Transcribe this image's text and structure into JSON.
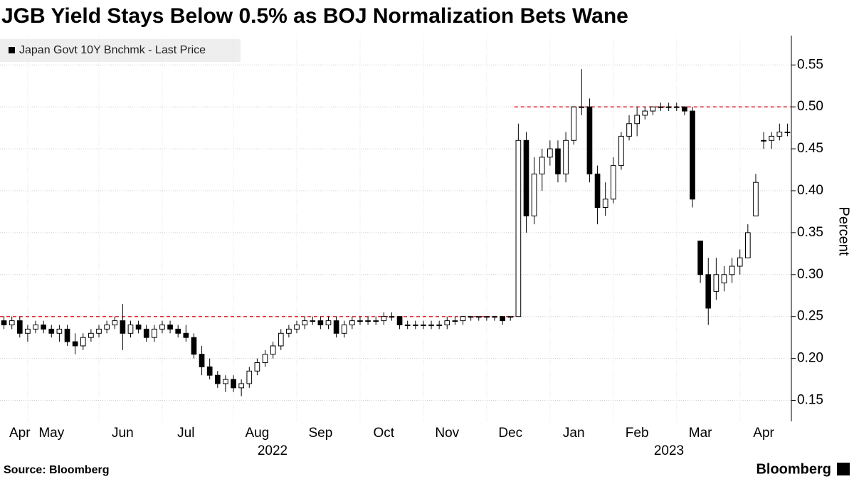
{
  "chart_data": {
    "type": "candlestick",
    "title": "JGB Yield Stays Below 0.5% as BOJ Normalization Bets Wane",
    "legend": "Japan Govt 10Y Bnchmk - Last Price",
    "y_axis_label": "Percent",
    "source": "Source: Bloomberg",
    "brand": "Bloomberg",
    "year_labels": [
      "2022",
      "2023"
    ],
    "categories": [
      null,
      null,
      "Apr",
      null,
      null,
      null,
      "May",
      null,
      null,
      null,
      null,
      null,
      null,
      null,
      null,
      "Jun",
      null,
      null,
      null,
      null,
      null,
      null,
      null,
      "Jul",
      null,
      null,
      null,
      null,
      null,
      null,
      null,
      null,
      "Aug",
      null,
      null,
      null,
      null,
      null,
      null,
      null,
      "Sep",
      null,
      null,
      null,
      null,
      null,
      null,
      null,
      "Oct",
      null,
      null,
      null,
      null,
      null,
      null,
      null,
      "Nov",
      null,
      null,
      null,
      null,
      null,
      null,
      null,
      "Dec",
      null,
      null,
      null,
      null,
      null,
      null,
      null,
      "Jan",
      null,
      null,
      null,
      null,
      null,
      null,
      null,
      "Feb",
      null,
      null,
      null,
      null,
      null,
      null,
      null,
      "Mar",
      null,
      null,
      null,
      null,
      null,
      null,
      null,
      "Apr",
      null,
      null,
      null
    ],
    "ohlc": [
      [
        0.245,
        0.25,
        0.235,
        0.24
      ],
      [
        0.24,
        0.25,
        0.235,
        0.245
      ],
      [
        0.245,
        0.25,
        0.225,
        0.23
      ],
      [
        0.23,
        0.24,
        0.22,
        0.235
      ],
      [
        0.235,
        0.245,
        0.23,
        0.24
      ],
      [
        0.24,
        0.245,
        0.23,
        0.235
      ],
      [
        0.235,
        0.24,
        0.225,
        0.23
      ],
      [
        0.23,
        0.24,
        0.22,
        0.235
      ],
      [
        0.235,
        0.24,
        0.215,
        0.22
      ],
      [
        0.22,
        0.23,
        0.205,
        0.215
      ],
      [
        0.215,
        0.23,
        0.21,
        0.225
      ],
      [
        0.225,
        0.235,
        0.22,
        0.23
      ],
      [
        0.23,
        0.24,
        0.225,
        0.235
      ],
      [
        0.235,
        0.245,
        0.23,
        0.24
      ],
      [
        0.24,
        0.25,
        0.235,
        0.245
      ],
      [
        0.245,
        0.265,
        0.21,
        0.23
      ],
      [
        0.23,
        0.245,
        0.225,
        0.24
      ],
      [
        0.24,
        0.245,
        0.23,
        0.235
      ],
      [
        0.235,
        0.24,
        0.22,
        0.225
      ],
      [
        0.225,
        0.24,
        0.22,
        0.235
      ],
      [
        0.235,
        0.245,
        0.23,
        0.24
      ],
      [
        0.24,
        0.245,
        0.23,
        0.235
      ],
      [
        0.235,
        0.24,
        0.225,
        0.23
      ],
      [
        0.23,
        0.24,
        0.22,
        0.225
      ],
      [
        0.225,
        0.23,
        0.2,
        0.205
      ],
      [
        0.205,
        0.215,
        0.18,
        0.19
      ],
      [
        0.19,
        0.2,
        0.175,
        0.18
      ],
      [
        0.18,
        0.185,
        0.165,
        0.17
      ],
      [
        0.17,
        0.18,
        0.16,
        0.175
      ],
      [
        0.175,
        0.18,
        0.16,
        0.165
      ],
      [
        0.165,
        0.175,
        0.155,
        0.17
      ],
      [
        0.17,
        0.19,
        0.165,
        0.185
      ],
      [
        0.185,
        0.2,
        0.18,
        0.195
      ],
      [
        0.195,
        0.21,
        0.19,
        0.205
      ],
      [
        0.205,
        0.22,
        0.2,
        0.215
      ],
      [
        0.215,
        0.235,
        0.21,
        0.23
      ],
      [
        0.23,
        0.24,
        0.225,
        0.235
      ],
      [
        0.235,
        0.245,
        0.23,
        0.24
      ],
      [
        0.24,
        0.25,
        0.235,
        0.245
      ],
      [
        0.245,
        0.25,
        0.24,
        0.245
      ],
      [
        0.245,
        0.25,
        0.235,
        0.24
      ],
      [
        0.24,
        0.25,
        0.235,
        0.245
      ],
      [
        0.245,
        0.25,
        0.225,
        0.23
      ],
      [
        0.23,
        0.245,
        0.225,
        0.24
      ],
      [
        0.24,
        0.25,
        0.235,
        0.245
      ],
      [
        0.245,
        0.25,
        0.24,
        0.245
      ],
      [
        0.245,
        0.25,
        0.24,
        0.245
      ],
      [
        0.245,
        0.25,
        0.24,
        0.245
      ],
      [
        0.245,
        0.255,
        0.24,
        0.25
      ],
      [
        0.25,
        0.255,
        0.245,
        0.25
      ],
      [
        0.25,
        0.25,
        0.235,
        0.24
      ],
      [
        0.24,
        0.245,
        0.235,
        0.24
      ],
      [
        0.24,
        0.245,
        0.235,
        0.24
      ],
      [
        0.24,
        0.245,
        0.235,
        0.24
      ],
      [
        0.24,
        0.245,
        0.235,
        0.24
      ],
      [
        0.24,
        0.245,
        0.235,
        0.24
      ],
      [
        0.24,
        0.25,
        0.235,
        0.245
      ],
      [
        0.245,
        0.25,
        0.24,
        0.245
      ],
      [
        0.245,
        0.25,
        0.24,
        0.25
      ],
      [
        0.25,
        0.25,
        0.245,
        0.25
      ],
      [
        0.25,
        0.25,
        0.245,
        0.25
      ],
      [
        0.25,
        0.25,
        0.245,
        0.25
      ],
      [
        0.25,
        0.25,
        0.245,
        0.25
      ],
      [
        0.25,
        0.25,
        0.24,
        0.245
      ],
      [
        0.25,
        0.25,
        0.245,
        0.25
      ],
      [
        0.25,
        0.48,
        0.25,
        0.46
      ],
      [
        0.46,
        0.47,
        0.35,
        0.37
      ],
      [
        0.37,
        0.44,
        0.36,
        0.42
      ],
      [
        0.42,
        0.45,
        0.4,
        0.44
      ],
      [
        0.44,
        0.46,
        0.43,
        0.45
      ],
      [
        0.45,
        0.46,
        0.41,
        0.42
      ],
      [
        0.42,
        0.47,
        0.41,
        0.46
      ],
      [
        0.46,
        0.5,
        0.455,
        0.5
      ],
      [
        0.5,
        0.545,
        0.49,
        0.5
      ],
      [
        0.5,
        0.51,
        0.41,
        0.42
      ],
      [
        0.42,
        0.43,
        0.36,
        0.38
      ],
      [
        0.38,
        0.41,
        0.37,
        0.39
      ],
      [
        0.39,
        0.44,
        0.385,
        0.43
      ],
      [
        0.43,
        0.47,
        0.425,
        0.465
      ],
      [
        0.465,
        0.49,
        0.46,
        0.48
      ],
      [
        0.48,
        0.5,
        0.465,
        0.49
      ],
      [
        0.49,
        0.5,
        0.485,
        0.495
      ],
      [
        0.495,
        0.5,
        0.49,
        0.5
      ],
      [
        0.5,
        0.505,
        0.495,
        0.5
      ],
      [
        0.5,
        0.505,
        0.495,
        0.5
      ],
      [
        0.5,
        0.505,
        0.495,
        0.5
      ],
      [
        0.5,
        0.5,
        0.49,
        0.495
      ],
      [
        0.495,
        0.5,
        0.38,
        0.39
      ],
      [
        0.34,
        0.34,
        0.29,
        0.3
      ],
      [
        0.3,
        0.32,
        0.24,
        0.26
      ],
      [
        0.28,
        0.32,
        0.27,
        0.3
      ],
      [
        0.29,
        0.31,
        0.28,
        0.3
      ],
      [
        0.3,
        0.32,
        0.29,
        0.31
      ],
      [
        0.31,
        0.33,
        0.3,
        0.32
      ],
      [
        0.32,
        0.36,
        0.32,
        0.35
      ],
      [
        0.37,
        0.42,
        0.37,
        0.41
      ],
      [
        0.46,
        0.47,
        0.45,
        0.46
      ],
      [
        0.46,
        0.47,
        0.45,
        0.465
      ],
      [
        0.465,
        0.48,
        0.46,
        0.47
      ],
      [
        0.47,
        0.48,
        0.465,
        0.47
      ]
    ],
    "up_color": "#ffffff",
    "down_color": "#000000",
    "reference_lines": [
      0.25,
      0.5
    ],
    "reference_color": "#e0303a",
    "ylim": [
      0.125,
      0.585
    ],
    "yticks": [
      0.15,
      {
        "value": 0.2,
        "label": "0.20"
      },
      0.25,
      {
        "value": 0.3,
        "label": "0.30"
      },
      0.35,
      {
        "value": 0.4,
        "label": "0.40"
      },
      0.45,
      {
        "value": 0.5,
        "label": "0.50"
      },
      0.55
    ],
    "grid": true
  }
}
